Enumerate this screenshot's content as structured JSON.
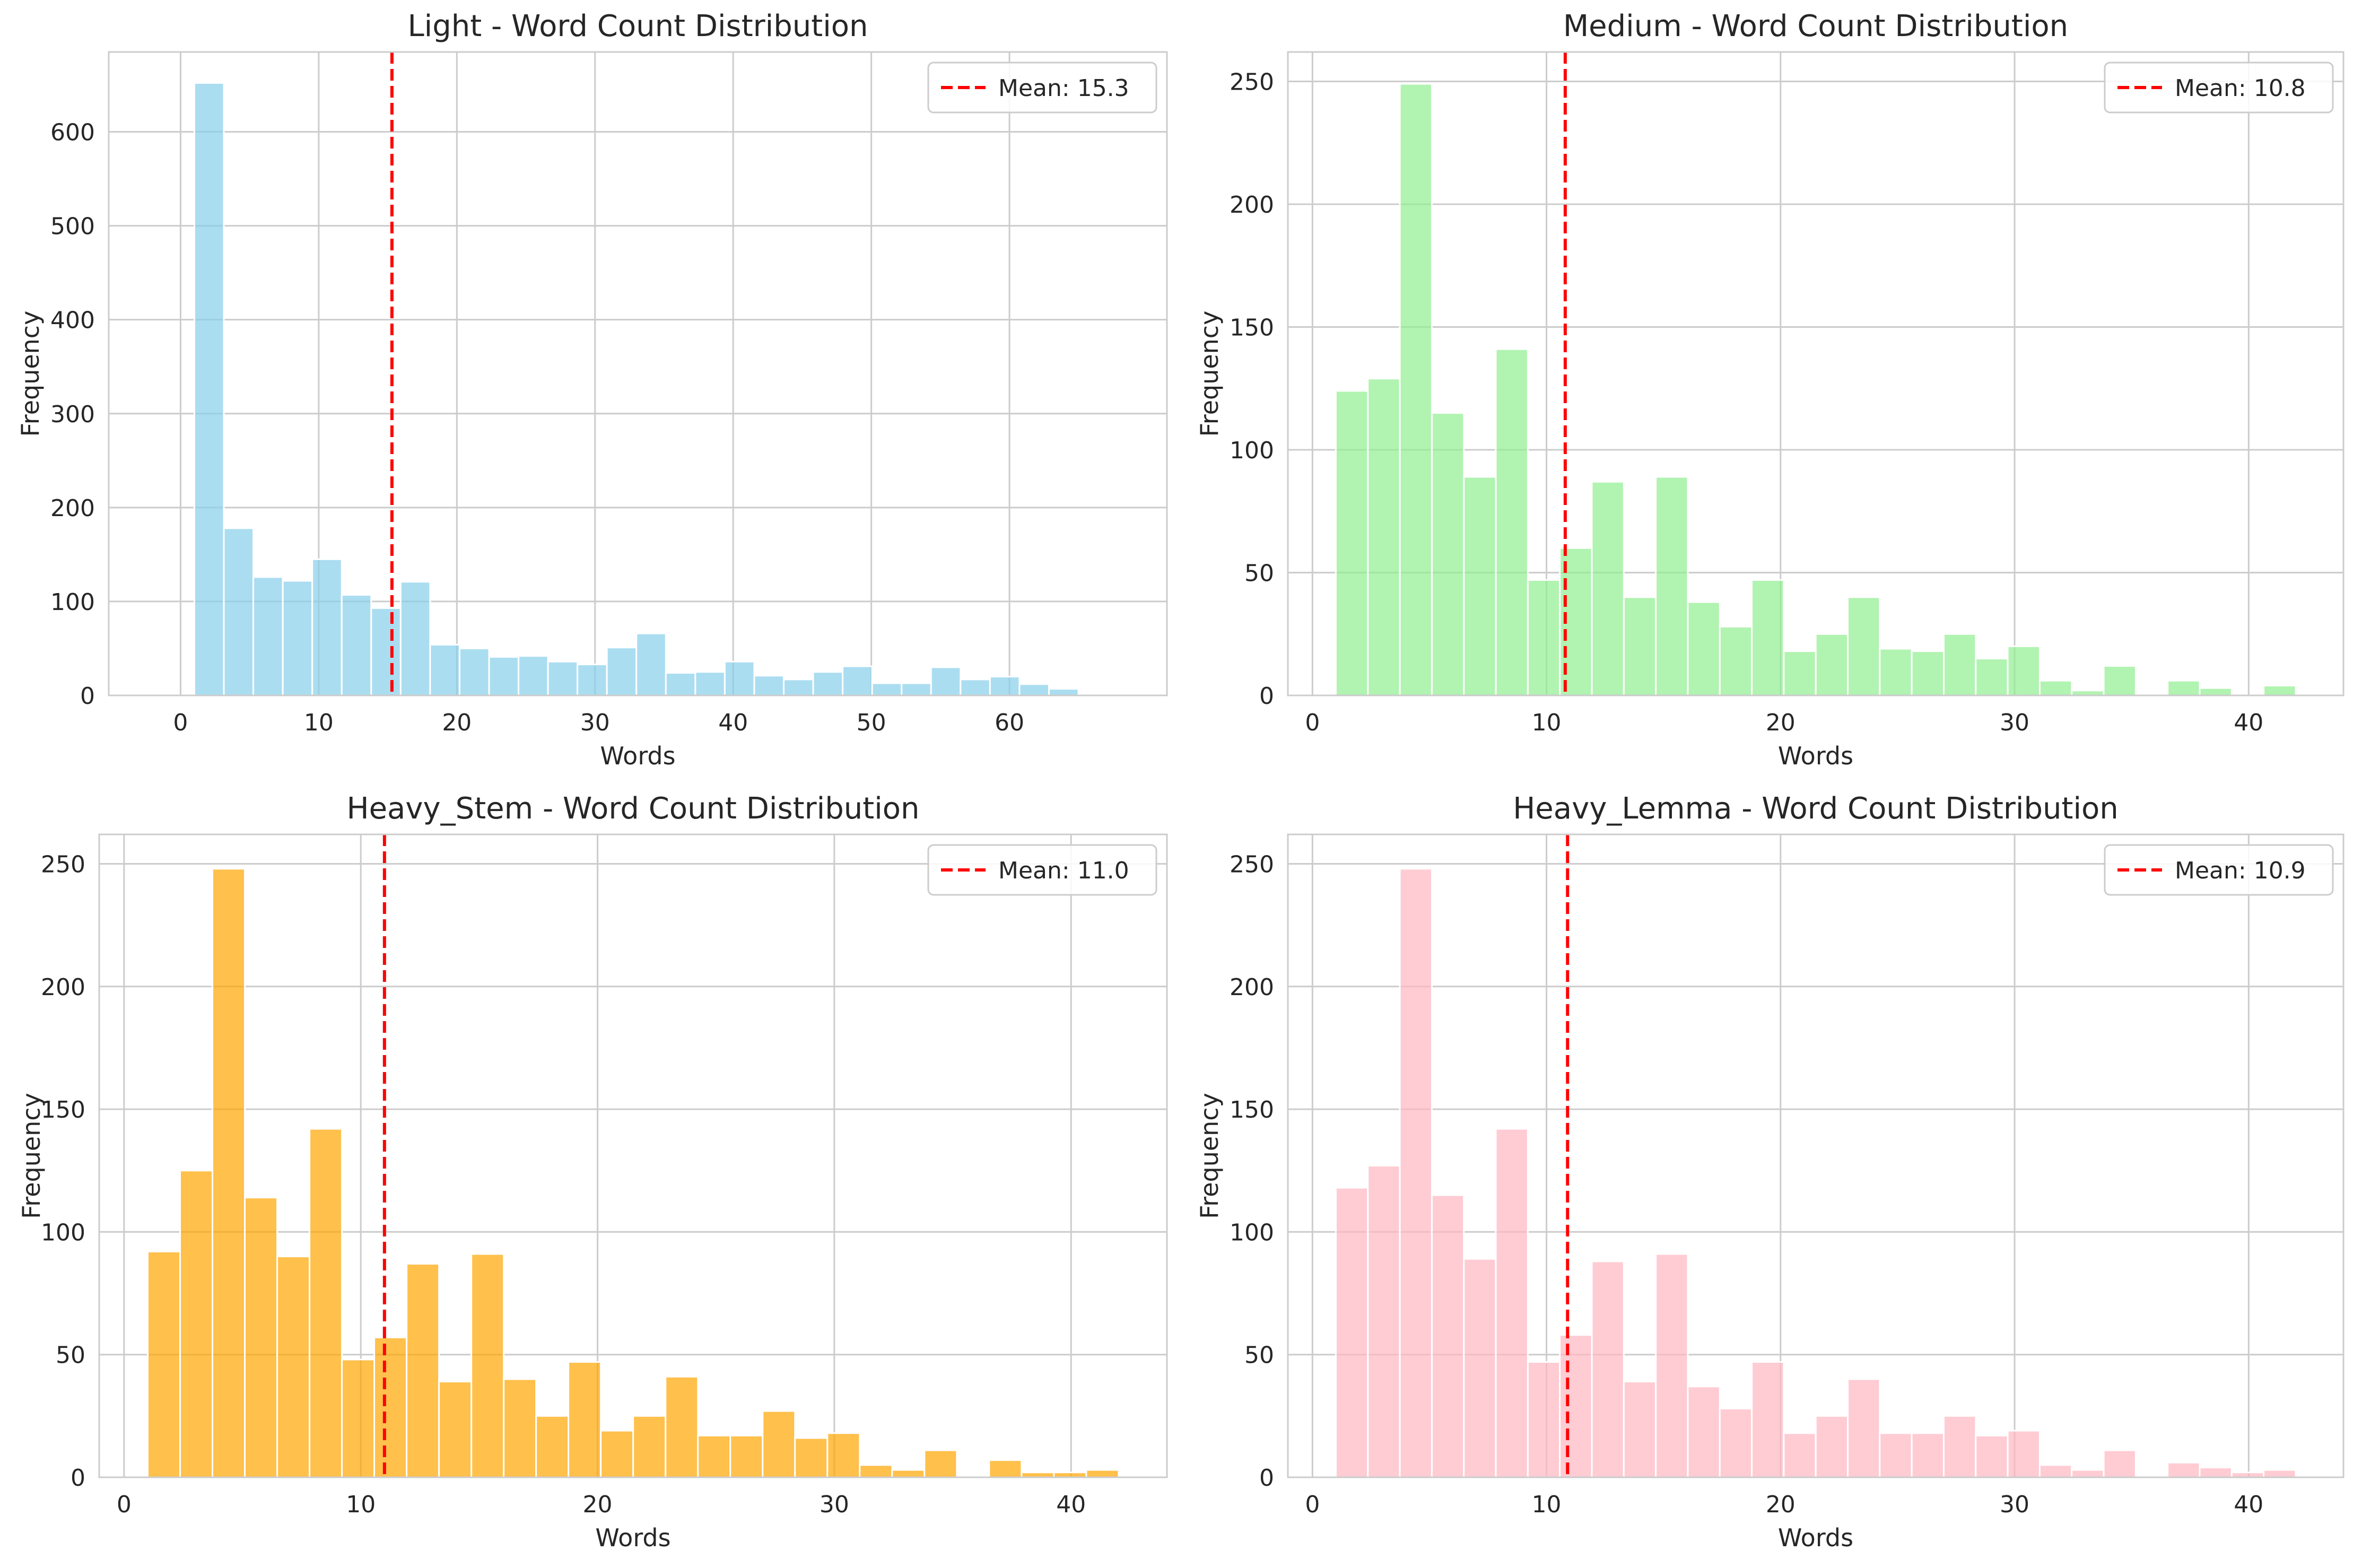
{
  "chart_data": [
    {
      "type": "bar",
      "title": "Light - Word Count Distribution",
      "xlabel": "Words",
      "ylabel": "Frequency",
      "color": "#87CEEB",
      "xlim": [
        -5.2,
        71.4
      ],
      "ylim": [
        0,
        685
      ],
      "xticks": [
        0,
        10,
        20,
        30,
        40,
        50,
        60
      ],
      "yticks": [
        0,
        100,
        200,
        300,
        400,
        500,
        600
      ],
      "bin_start": 1,
      "bin_width": 2.133,
      "values": [
        652,
        178,
        126,
        122,
        145,
        107,
        93,
        121,
        54,
        50,
        41,
        42,
        36,
        33,
        51,
        66,
        24,
        25,
        36,
        21,
        17,
        25,
        31,
        13,
        13,
        30,
        17,
        20,
        12,
        7
      ],
      "mean": 15.3,
      "legend_label": "Mean: 15.3",
      "legend_position": "upper right",
      "grid": true
    },
    {
      "type": "bar",
      "title": "Medium - Word Count Distribution",
      "xlabel": "Words",
      "ylabel": "Frequency",
      "color": "#90EE90",
      "xlim": [
        -1.05,
        44.05
      ],
      "ylim": [
        0,
        262
      ],
      "xticks": [
        0,
        10,
        20,
        30,
        40
      ],
      "yticks": [
        0,
        50,
        100,
        150,
        200,
        250
      ],
      "bin_start": 1,
      "bin_width": 1.367,
      "values": [
        124,
        129,
        249,
        115,
        89,
        141,
        47,
        60,
        87,
        40,
        89,
        38,
        28,
        47,
        18,
        25,
        40,
        19,
        18,
        25,
        15,
        20,
        6,
        2,
        12,
        0,
        6,
        3,
        0,
        4
      ],
      "mean": 10.8,
      "legend_label": "Mean: 10.8",
      "legend_position": "upper right",
      "grid": true
    },
    {
      "type": "bar",
      "title": "Heavy_Stem - Word Count Distribution",
      "xlabel": "Words",
      "ylabel": "Frequency",
      "color": "#FFA500",
      "xlim": [
        -1.05,
        44.05
      ],
      "ylim": [
        0,
        262
      ],
      "xticks": [
        0,
        10,
        20,
        30,
        40
      ],
      "yticks": [
        0,
        50,
        100,
        150,
        200,
        250
      ],
      "bin_start": 1,
      "bin_width": 1.367,
      "values": [
        92,
        125,
        248,
        114,
        90,
        142,
        48,
        57,
        87,
        39,
        91,
        40,
        25,
        47,
        19,
        25,
        41,
        17,
        17,
        27,
        16,
        18,
        5,
        3,
        11,
        0,
        7,
        2,
        2,
        3
      ],
      "mean": 11.0,
      "legend_label": "Mean: 11.0",
      "legend_position": "upper right",
      "grid": true
    },
    {
      "type": "bar",
      "title": "Heavy_Lemma - Word Count Distribution",
      "xlabel": "Words",
      "ylabel": "Frequency",
      "color": "#FFB6C1",
      "xlim": [
        -1.05,
        44.05
      ],
      "ylim": [
        0,
        262
      ],
      "xticks": [
        0,
        10,
        20,
        30,
        40
      ],
      "yticks": [
        0,
        50,
        100,
        150,
        200,
        250
      ],
      "bin_start": 1,
      "bin_width": 1.367,
      "values": [
        118,
        127,
        248,
        115,
        89,
        142,
        47,
        58,
        88,
        39,
        91,
        37,
        28,
        47,
        18,
        25,
        40,
        18,
        18,
        25,
        17,
        19,
        5,
        3,
        11,
        0,
        6,
        4,
        2,
        3
      ],
      "mean": 10.9,
      "legend_label": "Mean: 10.9",
      "legend_position": "upper right",
      "grid": true
    }
  ]
}
